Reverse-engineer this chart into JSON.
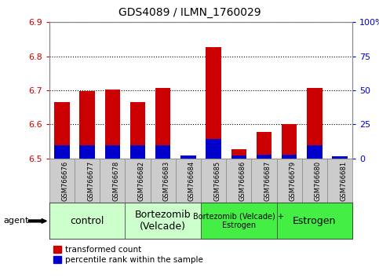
{
  "title": "GDS4089 / ILMN_1760029",
  "samples": [
    "GSM766676",
    "GSM766677",
    "GSM766678",
    "GSM766682",
    "GSM766683",
    "GSM766684",
    "GSM766685",
    "GSM766686",
    "GSM766687",
    "GSM766679",
    "GSM766680",
    "GSM766681"
  ],
  "red_tops": [
    6.665,
    6.697,
    6.703,
    6.665,
    6.708,
    6.502,
    6.828,
    6.528,
    6.578,
    6.6,
    6.708,
    6.502
  ],
  "blue_heights": [
    0.038,
    0.038,
    0.038,
    0.038,
    0.038,
    0.008,
    0.058,
    0.008,
    0.012,
    0.012,
    0.038,
    0.007
  ],
  "ymin": 6.5,
  "ymax": 6.9,
  "y_ticks_left": [
    6.5,
    6.6,
    6.7,
    6.8,
    6.9
  ],
  "y_ticks_right": [
    0,
    25,
    50,
    75,
    100
  ],
  "groups": [
    {
      "label": "control",
      "span": [
        0,
        3
      ],
      "color": "#ccffcc",
      "fontsize": 9
    },
    {
      "label": "Bortezomib\n(Velcade)",
      "span": [
        3,
        6
      ],
      "color": "#ccffcc",
      "fontsize": 9
    },
    {
      "label": "Bortezomib (Velcade) +\nEstrogen",
      "span": [
        6,
        9
      ],
      "color": "#44ee44",
      "fontsize": 7
    },
    {
      "label": "Estrogen",
      "span": [
        9,
        12
      ],
      "color": "#44ee44",
      "fontsize": 9
    }
  ],
  "red_color": "#cc0000",
  "blue_color": "#0000cc",
  "left_tick_color": "#cc0000",
  "right_tick_color": "#0000cc",
  "legend_items": [
    "transformed count",
    "percentile rank within the sample"
  ],
  "agent_label": "agent",
  "sample_box_color": "#cccccc",
  "sample_box_edge": "#888888",
  "bar_width": 0.6
}
